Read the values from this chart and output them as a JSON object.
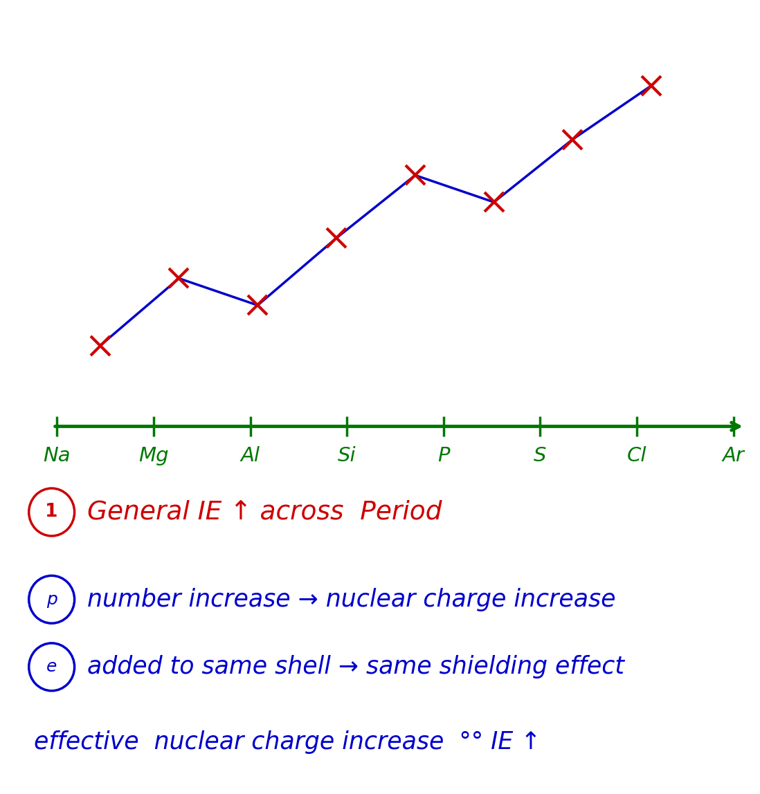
{
  "elements": [
    "Na",
    "Mg",
    "Al",
    "Si",
    "P",
    "S",
    "Cl",
    "Ar"
  ],
  "x_positions": [
    1,
    2,
    3,
    4,
    5,
    6,
    7,
    8
  ],
  "y_values": [
    2.0,
    3.5,
    2.9,
    4.4,
    5.8,
    5.2,
    6.6,
    7.8
  ],
  "line_color": "#0000cc",
  "marker_color": "#cc0000",
  "axis_color": "#007700",
  "label_color": "#007700",
  "background_color": "#ffffff",
  "text_red": "#cc0000",
  "text_blue": "#0000cc",
  "ann1_circle_char": "1",
  "ann1_text": "General IE ↑ across  Period",
  "ann2_circle_char": "p",
  "ann2_text": "number increase → nuclear charge increase",
  "ann3_circle_char": "e",
  "ann3_text": "added to same shell → same shielding effect",
  "ann4_text": "effective  nuclear charge increase  °° IE ↑"
}
